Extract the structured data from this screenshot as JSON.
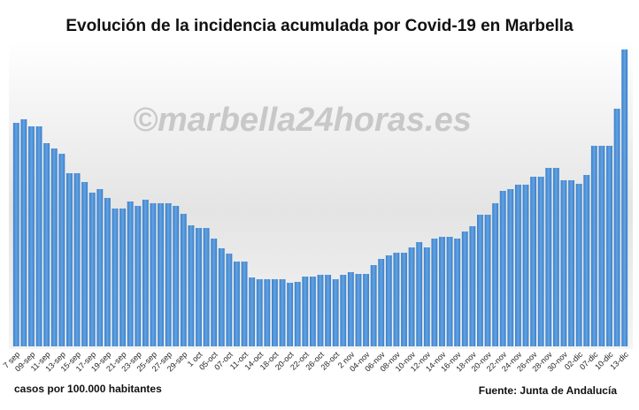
{
  "chart_data": {
    "type": "bar",
    "title": "Evolución de la incidencia acumulada por Covid-19 en Marbella",
    "watermark": "©marbella24horas.es",
    "y_label": "casos por 100.000 habitantes",
    "source": "Fuente: Junta de Andalucía",
    "color": "#4a90d6",
    "categories": [
      "7 sep",
      null,
      "09-sep",
      null,
      "11-sep",
      null,
      "13-sep",
      null,
      "15-sep",
      null,
      "17-sep",
      null,
      "19-sep",
      null,
      "21-sep",
      null,
      "23-sep",
      null,
      "25-sep",
      null,
      "27-sep",
      null,
      "29-sep",
      null,
      "1 oct",
      null,
      "05-oct",
      null,
      "07-oct",
      null,
      "11-oct",
      null,
      "14-oct",
      null,
      "18-oct",
      null,
      "20-oct",
      null,
      "22-oct",
      null,
      "26-oct",
      null,
      "28-oct",
      null,
      "2 nov",
      null,
      "04-nov",
      null,
      "06-nov",
      null,
      "08-nov",
      null,
      "10-nov",
      null,
      "12-nov",
      null,
      "14-nov",
      null,
      "16-nov",
      null,
      "18-nov",
      null,
      "20-nov",
      null,
      "22-nov",
      null,
      "24-nov",
      null,
      "26-nov",
      null,
      "28-nov",
      null,
      "30-nov",
      null,
      "02-dic",
      null,
      "07-dic",
      null,
      "10-dic",
      null,
      "13-dic"
    ],
    "values": [
      253,
      257,
      249,
      249,
      230,
      224,
      218,
      196,
      196,
      186,
      174,
      178,
      168,
      156,
      156,
      164,
      159,
      166,
      162,
      162,
      162,
      159,
      150,
      137,
      134,
      134,
      122,
      111,
      105,
      96,
      96,
      78,
      76,
      76,
      76,
      76,
      72,
      73,
      79,
      79,
      81,
      81,
      76,
      81,
      84,
      82,
      82,
      92,
      99,
      103,
      106,
      106,
      112,
      118,
      112,
      122,
      124,
      124,
      122,
      130,
      136,
      149,
      149,
      162,
      176,
      178,
      183,
      183,
      192,
      192,
      202,
      202,
      188,
      188,
      184,
      194,
      227,
      227,
      227,
      269,
      336
    ]
  }
}
